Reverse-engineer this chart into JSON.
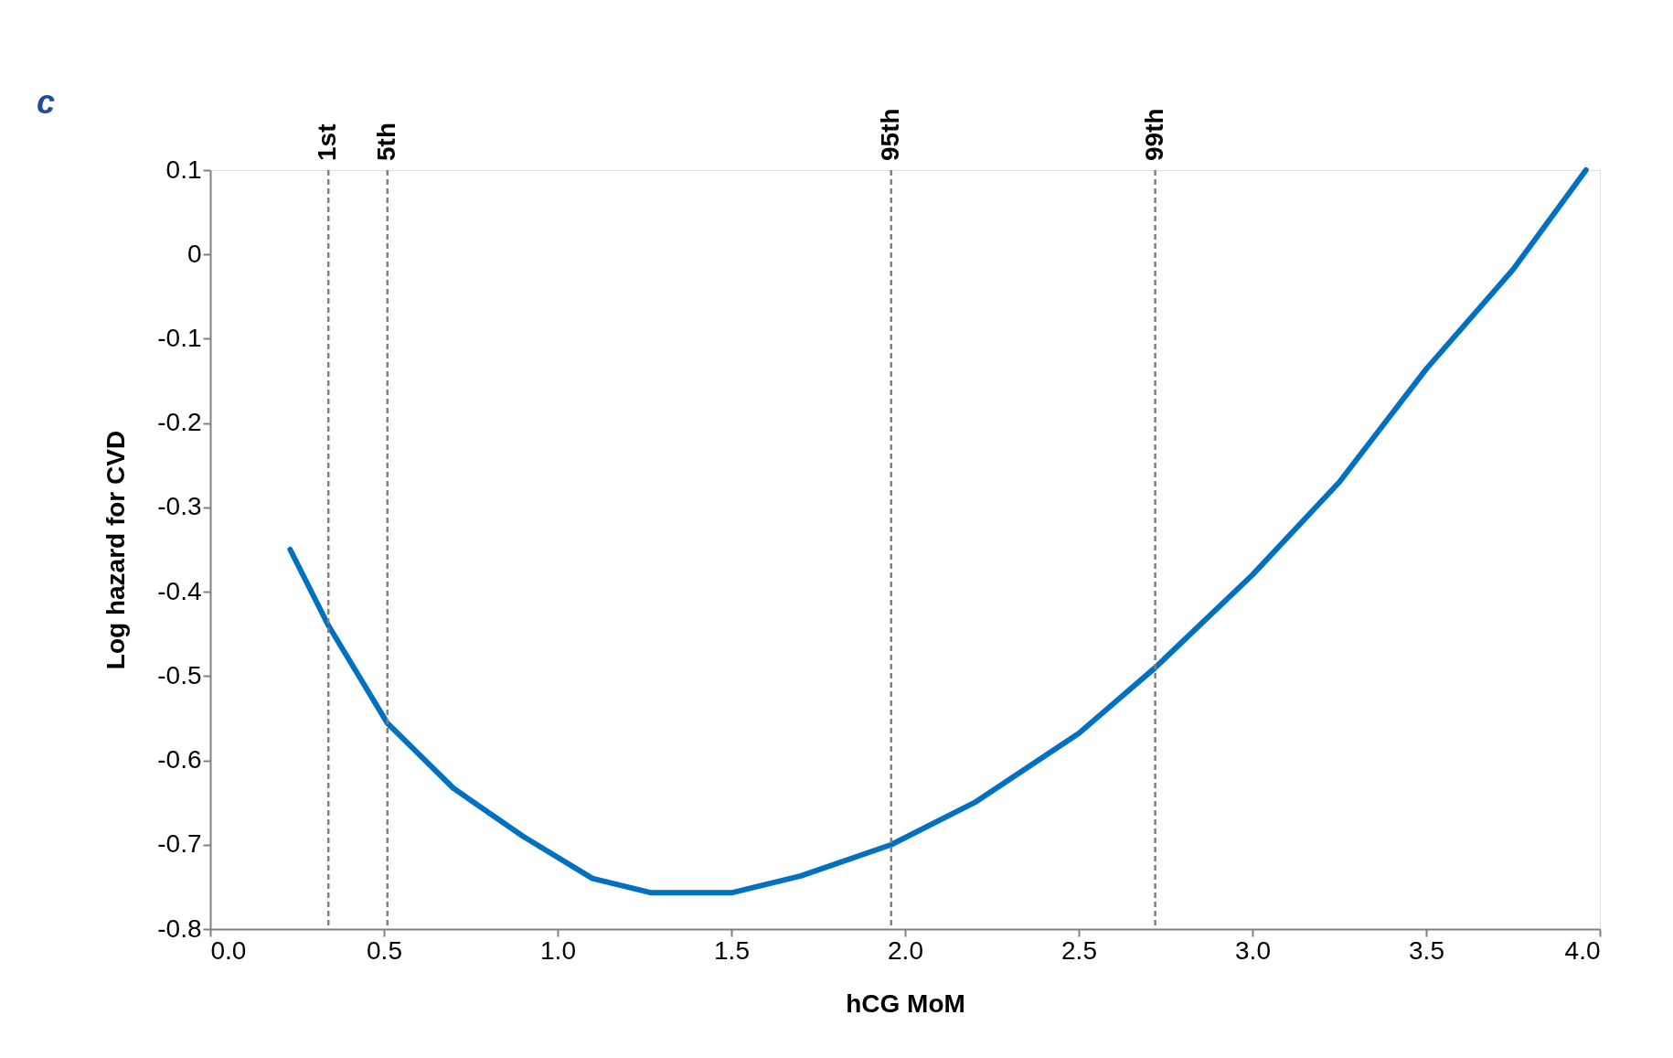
{
  "chart_data": {
    "type": "line",
    "xlabel": "hCG MoM",
    "ylabel": "Log hazard for CVD",
    "annotations": [
      "c"
    ],
    "x": [
      0.23,
      0.34,
      0.51,
      0.7,
      0.9,
      1.1,
      1.27,
      1.5,
      1.7,
      1.96,
      2.2,
      2.5,
      2.72,
      3.0,
      3.25,
      3.5,
      3.75,
      3.96
    ],
    "series": [
      {
        "color": "#0070c0",
        "values": [
          -0.35,
          -0.44,
          -0.556,
          -0.633,
          -0.69,
          -0.74,
          -0.757,
          -0.757,
          -0.737,
          -0.7,
          -0.65,
          -0.568,
          -0.49,
          -0.38,
          -0.27,
          -0.136,
          -0.018,
          0.1
        ]
      }
    ],
    "xlim": [
      0,
      4
    ],
    "xticks": [
      {
        "value": 0,
        "label": "0.0"
      },
      0.5,
      {
        "value": 1,
        "label": "1.0"
      },
      1.5,
      {
        "value": 2,
        "label": "2.0"
      },
      2.5,
      {
        "value": 3,
        "label": "3.0"
      },
      3.5,
      {
        "value": 4,
        "label": "4.0"
      }
    ],
    "ylim": [
      -0.8,
      0.1
    ],
    "yticks": [
      0.1,
      0,
      -0.1,
      -0.2,
      -0.3,
      -0.4,
      -0.5,
      -0.6,
      -0.7,
      -0.8
    ],
    "ref_lines": [
      {
        "axis": "x",
        "value": 0.34,
        "label": "1st",
        "color": "#808080",
        "line_style": "dashed"
      },
      {
        "axis": "x",
        "value": 0.51,
        "label": "5th",
        "color": "#808080",
        "line_style": "dashed"
      },
      {
        "axis": "x",
        "value": 1.96,
        "label": "95th",
        "color": "#808080",
        "line_style": "dashed"
      },
      {
        "axis": "x",
        "value": 2.72,
        "label": "99th",
        "color": "#808080",
        "line_style": "dashed"
      }
    ],
    "grid": false,
    "marker": "none",
    "line_style": "solid"
  }
}
